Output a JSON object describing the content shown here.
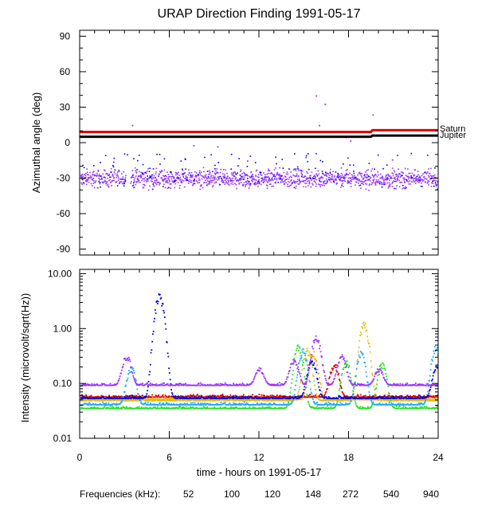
{
  "colors": {
    "f52": "#e00000",
    "f100": "#ffa500",
    "f120": "#e0c000",
    "f148": "#22e022",
    "f272": "#22aaff",
    "f540": "#0000dd",
    "f940": "#9933ff",
    "saturn": "#e00000",
    "jupiter": "#000000"
  },
  "chart_data": [
    {
      "type": "scatter",
      "title": "URAP Direction Finding  1991-05-17",
      "xlabel": "",
      "ylabel": "Azimuthal angle (deg)",
      "xlim": [
        0,
        24
      ],
      "ylim": [
        -95,
        95
      ],
      "xticks": [
        0,
        6,
        12,
        18,
        24
      ],
      "yticks": [
        90,
        60,
        30,
        0,
        -30,
        -60,
        -90
      ],
      "ytick_labels": [
        "90",
        "60",
        "30",
        "0",
        "-30",
        "-60",
        "-90"
      ],
      "reference_lines": [
        {
          "name": "Saturn",
          "color": "#e00000",
          "points": [
            [
              0,
              9
            ],
            [
              19.5,
              9
            ],
            [
              19.6,
              10.5
            ],
            [
              24,
              10.5
            ]
          ]
        },
        {
          "name": "Jupiter",
          "color": "#000000",
          "points": [
            [
              0,
              5
            ],
            [
              19.5,
              5
            ],
            [
              19.6,
              6
            ],
            [
              24,
              6
            ]
          ]
        }
      ],
      "series": [
        {
          "name": "940 kHz",
          "color": "#9933ff",
          "description": "dense scatter around -30 deg (range about -45 to -15) over 0-24 h, gap near 3.2 h"
        },
        {
          "name": "540 kHz",
          "color": "#0000dd",
          "description": "sparse points between -40 and -10 deg"
        },
        {
          "name": "outliers",
          "color": "#9933ff",
          "points": [
            [
              15.8,
              40
            ],
            [
              16.4,
              33
            ],
            [
              19.6,
              24
            ],
            [
              3.5,
              15
            ],
            [
              16.0,
              15
            ],
            [
              17.8,
              5
            ],
            [
              18.1,
              2
            ],
            [
              9.2,
              -3
            ],
            [
              7.6,
              -2
            ],
            [
              11.2,
              -15
            ],
            [
              15.1,
              -12
            ],
            [
              20.9,
              -14
            ]
          ]
        }
      ]
    },
    {
      "type": "scatter",
      "title": "",
      "xlabel": "time - hours on 1991-05-17",
      "ylabel": "Intensity (microvolt/sqrt(Hz))",
      "yscale": "log",
      "xlim": [
        0,
        24
      ],
      "ylim": [
        0.01,
        12
      ],
      "xticks": [
        0,
        6,
        12,
        18,
        24
      ],
      "yticks": [
        10,
        1,
        0.1,
        0.01
      ],
      "ytick_labels": [
        "10.00",
        "1.00",
        "0.10",
        "0.01"
      ],
      "series": [
        {
          "name": "52",
          "color": "#e00000",
          "baseline": 0.058,
          "peaks": [
            [
              17,
              0.25
            ]
          ]
        },
        {
          "name": "100",
          "color": "#ffa500",
          "baseline": 0.052,
          "peaks": [
            [
              15.6,
              0.4
            ]
          ]
        },
        {
          "name": "120",
          "color": "#e0c000",
          "baseline": 0.05,
          "peaks": [
            [
              15.2,
              0.45
            ],
            [
              19.0,
              1.4
            ]
          ]
        },
        {
          "name": "148",
          "color": "#22e022",
          "baseline": 0.036,
          "peaks": [
            [
              14.6,
              0.55
            ],
            [
              17.8,
              0.3
            ],
            [
              20.2,
              0.25
            ]
          ]
        },
        {
          "name": "272",
          "color": "#22aaff",
          "baseline": 0.042,
          "peaks": [
            [
              3.4,
              0.22
            ],
            [
              14.9,
              0.45
            ],
            [
              18.8,
              0.4
            ],
            [
              23.8,
              0.5
            ]
          ]
        },
        {
          "name": "540",
          "color": "#0000dd",
          "baseline": 0.055,
          "peaks": [
            [
              5.3,
              4.5
            ],
            [
              15.5,
              0.3
            ],
            [
              23.9,
              0.25
            ]
          ]
        },
        {
          "name": "940",
          "color": "#9933ff",
          "baseline": 0.095,
          "peaks": [
            [
              3.1,
              0.35
            ],
            [
              12.0,
              0.2
            ],
            [
              14.3,
              0.3
            ],
            [
              15.8,
              0.8
            ],
            [
              17.5,
              0.35
            ],
            [
              20.0,
              0.2
            ]
          ]
        }
      ]
    }
  ],
  "planet_labels": {
    "saturn": "Saturn",
    "jupiter": "Jupiter"
  },
  "legend": {
    "title": "Frequencies (kHz):",
    "items": [
      {
        "label": "52",
        "color": "#e00000"
      },
      {
        "label": "100",
        "color": "#ffa500"
      },
      {
        "label": "120",
        "color": "#e0c000"
      },
      {
        "label": "148",
        "color": "#22e022"
      },
      {
        "label": "272",
        "color": "#22aaff"
      },
      {
        "label": "540",
        "color": "#0000dd"
      },
      {
        "label": "940",
        "color": "#9933ff"
      }
    ]
  }
}
